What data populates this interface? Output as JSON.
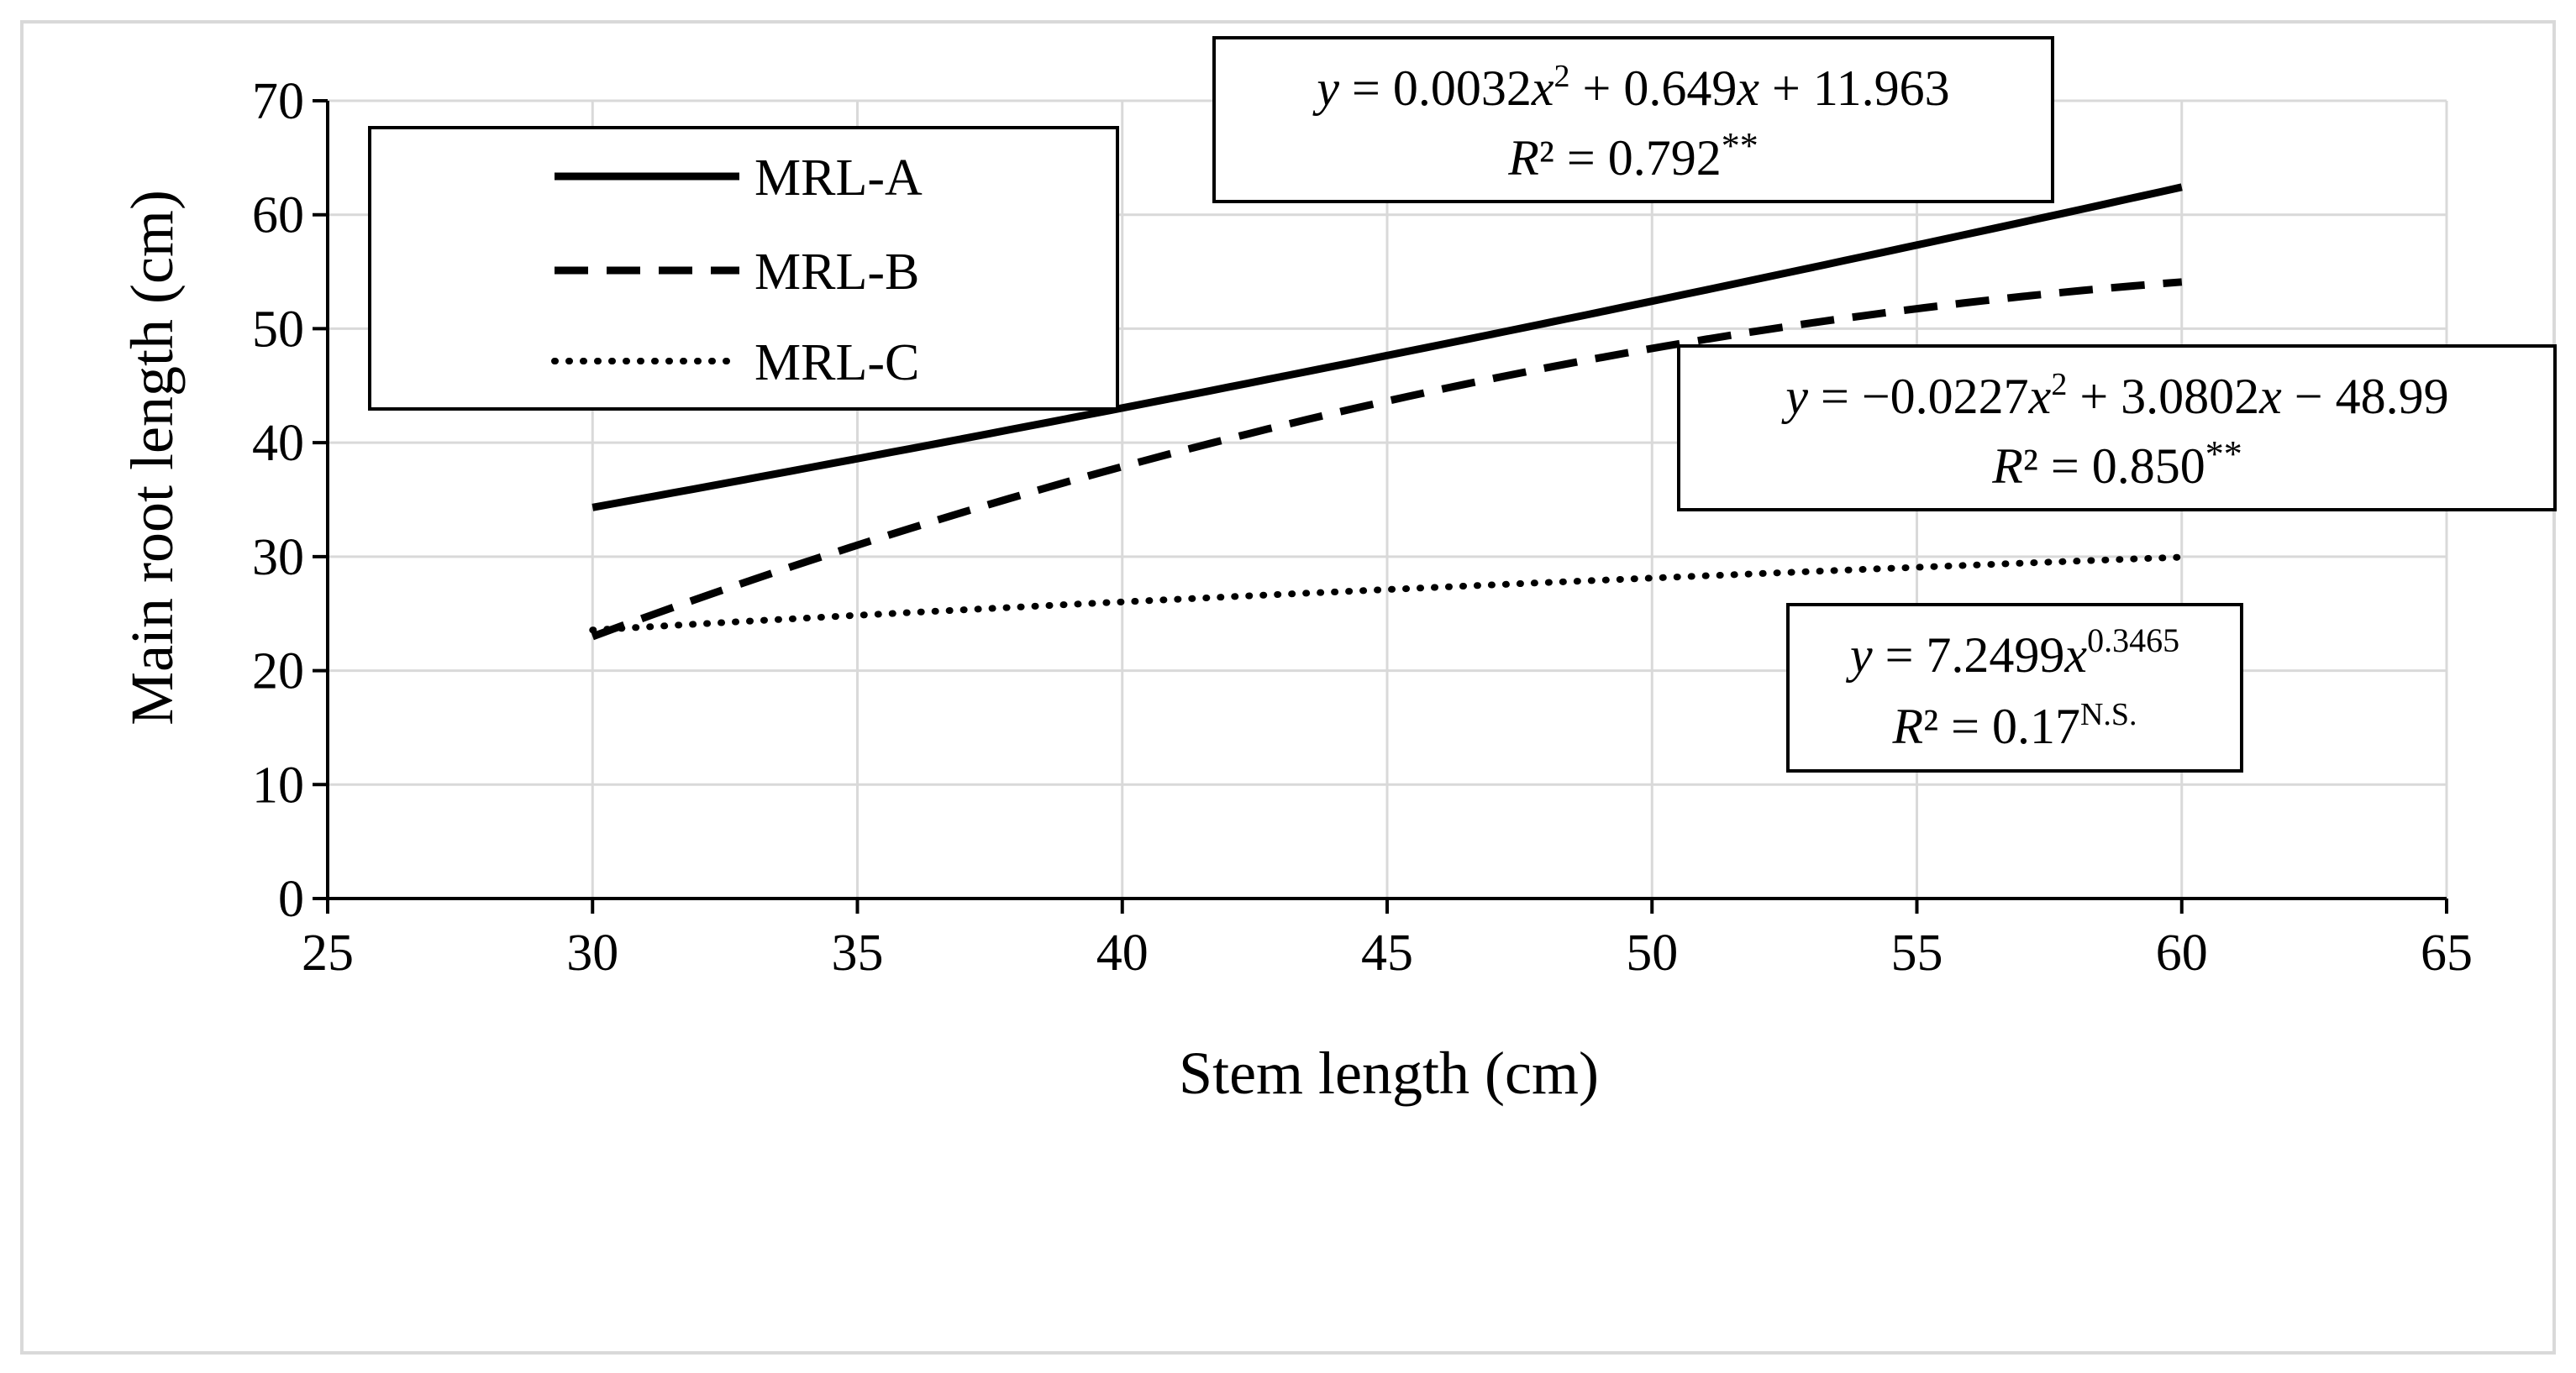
{
  "chart_data": {
    "type": "line",
    "title": "",
    "xlabel": "Stem length (cm)",
    "ylabel": "Main root length (cm)",
    "xlim": [
      25,
      65
    ],
    "ylim": [
      0,
      70
    ],
    "xticks": [
      25,
      30,
      35,
      40,
      45,
      50,
      55,
      60,
      65
    ],
    "yticks": [
      0,
      10,
      20,
      30,
      40,
      50,
      60,
      70
    ],
    "grid": true,
    "legend_position": "top-left",
    "series": [
      {
        "name": "MRL-A",
        "line_style": "solid",
        "model": "poly2",
        "coefficients": [
          0.0032,
          0.649,
          11.963
        ],
        "x_range": [
          30,
          60
        ],
        "equation_parts": {
          "y": "y",
          "eq1": " = 0.0032",
          "x1": "x",
          "sup1": "2",
          "eq2": " + 0.649",
          "x2": "x",
          "eq3": " + 11.963"
        },
        "r2_parts": {
          "r": "R",
          "eq": "² = 0.792",
          "sig": "**"
        }
      },
      {
        "name": "MRL-B",
        "line_style": "dashed",
        "model": "poly2",
        "coefficients": [
          -0.0227,
          3.0802,
          -48.99
        ],
        "x_range": [
          30,
          60
        ],
        "equation_parts": {
          "y": "y",
          "eq1": " = −0.0227",
          "x1": "x",
          "sup1": "2",
          "eq2": " + 3.0802",
          "x2": "x",
          "eq3": " − 48.99"
        },
        "r2_parts": {
          "r": "R",
          "eq": "² = 0.850",
          "sig": "**"
        }
      },
      {
        "name": "MRL-C",
        "line_style": "dotted",
        "model": "power",
        "coefficients": [
          7.2499,
          0.3465
        ],
        "x_range": [
          30,
          60
        ],
        "equation_parts": {
          "y": "y",
          "eq1": " = 7.2499",
          "x1": "x",
          "sup1": "0.3465"
        },
        "r2_parts": {
          "r": "R",
          "eq": "² = 0.17",
          "sig": "N.S."
        }
      }
    ]
  }
}
